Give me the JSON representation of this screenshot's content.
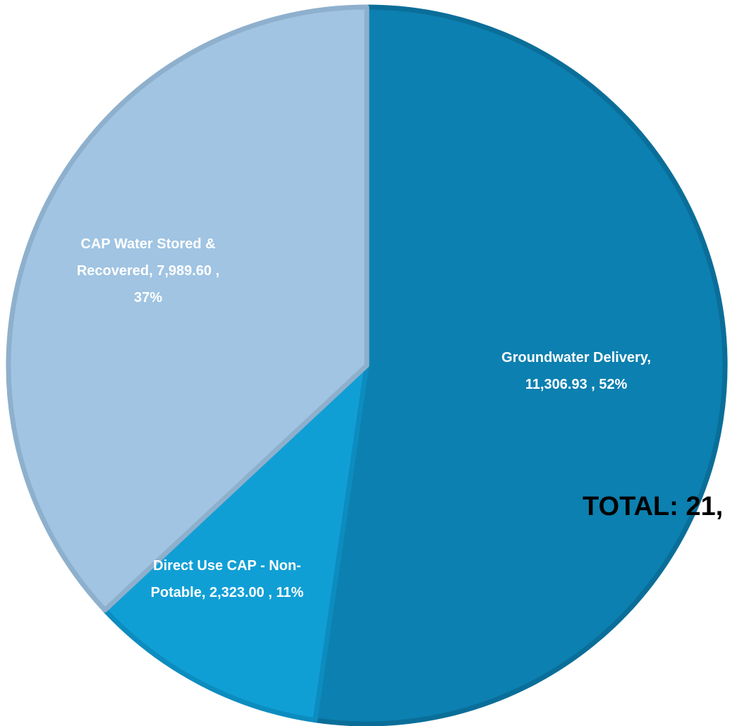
{
  "chart_data": {
    "type": "pie",
    "values": [
      11306.93,
      2323.0,
      7989.6
    ],
    "value_labels": [
      [
        "Groundwater Delivery,",
        "11,306.93 , 52%"
      ],
      [
        "Direct Use CAP - Non-",
        "Potable,  2,323.00 , 11%"
      ],
      [
        "CAP Water Stored &",
        "Recovered,  7,989.60 ,",
        "37%"
      ]
    ],
    "colors": [
      "#0c80b0",
      "#109fd5",
      "#a0c4e2"
    ],
    "edge_colors": [
      "#0a6e99",
      "#0c8cbf",
      "#8eb0cd"
    ],
    "start_angle": 90,
    "direction": "clockwise",
    "annotation": "TOTAL: 21,"
  }
}
